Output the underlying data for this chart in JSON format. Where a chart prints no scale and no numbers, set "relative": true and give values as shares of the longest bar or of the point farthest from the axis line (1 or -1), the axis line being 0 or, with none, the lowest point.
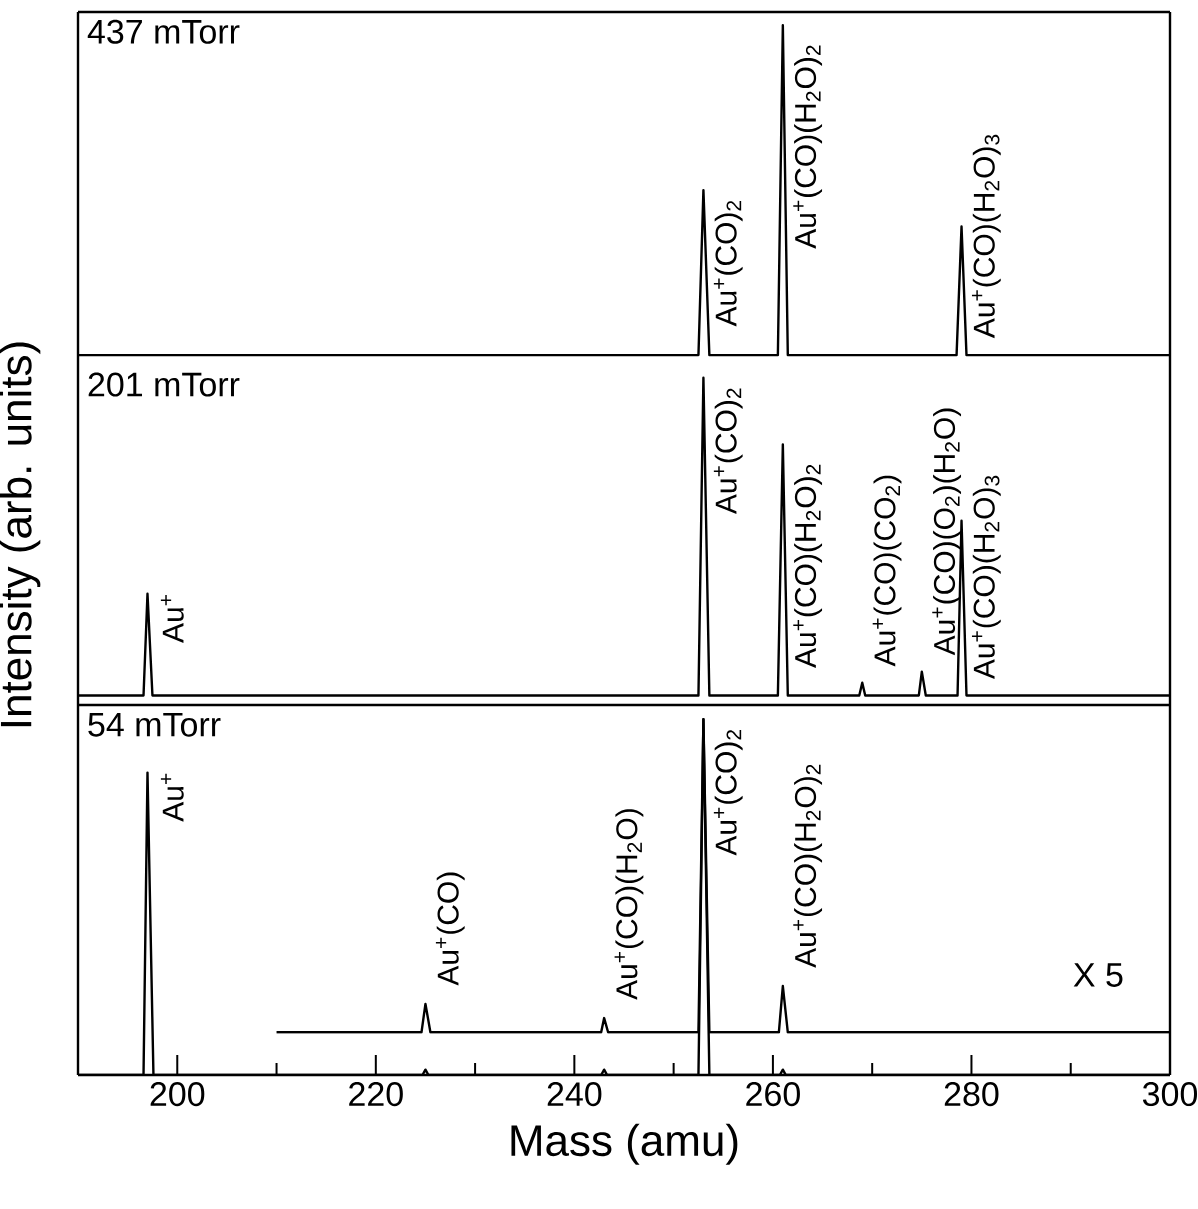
{
  "chart_data": [
    {
      "type": "line",
      "title": "437 mTorr",
      "relative": true,
      "xlim": [
        190,
        300
      ],
      "tick_labels": false,
      "series": [
        {
          "color": "#000000",
          "x": [
            190,
            252.5,
            253,
            253.6,
            260.5,
            261,
            261.5,
            278.5,
            279,
            279.5,
            300
          ],
          "values": [
            0,
            0,
            0.5,
            0,
            0,
            1,
            0,
            0,
            0.39,
            0,
            0
          ]
        }
      ],
      "annotations": [
        {
          "text": "Au$^{+}$(CO)$_{2}$",
          "x": 253,
          "y": 0.5
        },
        {
          "text": "Au$^{+}$(CO)(H$_{2}$O)$_{2}$",
          "x": 261,
          "y": 1
        },
        {
          "text": "Au$^{+}$(CO)(H$_{2}$O)$_{3}$",
          "x": 279,
          "y": 0.39
        }
      ]
    },
    {
      "type": "line",
      "title": "201 mTorr",
      "ylabel": "Intensity (arb. units)",
      "relative": true,
      "xlim": [
        190,
        300
      ],
      "tick_labels": false,
      "series": [
        {
          "color": "#000000",
          "x": [
            190,
            196.6,
            197,
            197.5,
            252.5,
            253,
            253.6,
            260.5,
            261,
            261.5,
            268.7,
            269,
            269.3,
            274.7,
            275,
            275.4,
            278.6,
            279,
            279.5,
            300
          ],
          "values": [
            0,
            0,
            0.32,
            0,
            0,
            1,
            0,
            0,
            0.79,
            0,
            0,
            0.04,
            0,
            0,
            0.075,
            0,
            0,
            0.55,
            0,
            0
          ]
        }
      ],
      "annotations": [
        {
          "text": "Au$^{+}$",
          "x": 197,
          "y": 0.32
        },
        {
          "text": "Au$^{+}$(CO)$_{2}$",
          "x": 253,
          "y": 1
        },
        {
          "text": "Au$^{+}$(CO)(H$_{2}$O)$_{2}$",
          "x": 261,
          "y": 0.79
        },
        {
          "text": "Au$^{+}$(CO)(CO$_{2}$)",
          "x": 269,
          "y": 0.04
        },
        {
          "text": "Au$^{+}$(CO)(O$_{2}$)(H$_{2}$O)",
          "x": 275,
          "y": 0.075
        },
        {
          "text": "Au$^{+}$(CO)(H$_{2}$O)$_{3}$",
          "x": 279,
          "y": 0.55
        }
      ]
    },
    {
      "type": "line",
      "title": "54 mTorr",
      "xlabel": "Mass (amu)",
      "relative": true,
      "xlim": [
        190,
        300
      ],
      "xticks": [
        200,
        220,
        240,
        260,
        280,
        300
      ],
      "tick_labels": "x",
      "series": [
        {
          "color": "#000000",
          "x": [
            190,
            196.6,
            197,
            197.6,
            224.7,
            225,
            225.3,
            242.7,
            243,
            243.3,
            252.5,
            253,
            253.6,
            260.7,
            261,
            261.3,
            300
          ],
          "values": [
            0,
            0,
            0.85,
            0,
            0,
            0.015,
            0,
            0,
            0.015,
            0,
            0,
            1,
            0,
            0,
            0.015,
            0,
            0
          ]
        },
        {
          "color": "#000000",
          "x": [
            210,
            224.6,
            225,
            225.5,
            242.7,
            243,
            243.4,
            252.5,
            253,
            253.6,
            260.6,
            261,
            261.5,
            300
          ],
          "values": [
            0.12,
            0.12,
            0.2,
            0.12,
            0.12,
            0.16,
            0.12,
            0.12,
            1,
            0.12,
            0.12,
            0.25,
            0.12,
            0.12
          ]
        }
      ],
      "annotations": [
        {
          "text": "Au$^{+}$",
          "x": 197,
          "y": 0.85
        },
        {
          "text": "Au$^{+}$(CO)",
          "x": 225,
          "y": 0.2
        },
        {
          "text": "Au$^{+}$(CO)(H$_{2}$O)",
          "x": 243,
          "y": 0.16
        },
        {
          "text": "Au$^{+}$(CO)$_{2}$",
          "x": 253,
          "y": 1
        },
        {
          "text": "Au$^{+}$(CO)(H$_{2}$O)$_{2}$",
          "x": 261,
          "y": 0.25
        },
        "X 5"
      ]
    }
  ]
}
